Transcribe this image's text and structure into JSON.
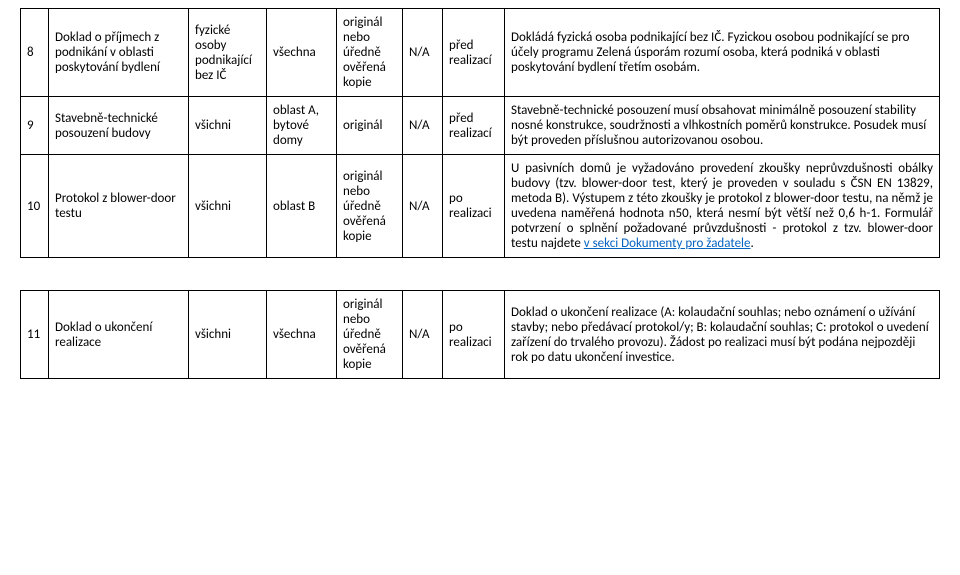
{
  "rows": [
    {
      "num": "8",
      "name": "Doklad o příjmech z podnikání v oblasti poskytování bydlení",
      "who": "fyzické osoby podnikající bez IČ",
      "area": "všechna",
      "form": "originál nebo úředně ověřená kopie",
      "na": "N/A",
      "when": "před realizací",
      "desc": "Dokládá fyzická osoba podnikající bez IČ. Fyzickou osobou podnikající se pro účely programu Zelená úsporám rozumí osoba, která podniká v oblasti poskytování bydlení třetím osobám."
    },
    {
      "num": "9",
      "name": "Stavebně-technické posouzení budovy",
      "who": "všichni",
      "area": "oblast A, bytové domy",
      "form": "originál",
      "na": "N/A",
      "when": "před realizací",
      "desc": "Stavebně-technické posouzení musí obsahovat minimálně posouzení stability nosné konstrukce, soudržnosti a vlhkostních poměrů konstrukce. Posudek musí být proveden příslušnou autorizovanou osobou."
    },
    {
      "num": "10",
      "name": "Protokol z blower-door testu",
      "who": "všichni",
      "area": "oblast B",
      "form": "originál nebo úředně ověřená kopie",
      "na": "N/A",
      "when": "po realizaci",
      "desc_pre": "U pasivních domů je vyžadováno provedení zkoušky neprůvzdušnosti obálky budovy (tzv. blower-door test, který je proveden v souladu s ČSN EN 13829, metoda B). Výstupem z této zkoušky je protokol z blower-door testu, na němž je uvedena naměřená hodnota n50, která nesmí být větší než 0,6 h-1. Formulář potvrzení o splnění požadované průvzdušnosti - protokol z tzv. blower-door testu najdete ",
      "desc_link": "v sekci Dokumenty pro žadatele",
      "desc_post": "."
    },
    {
      "num": "11",
      "name": "Doklad o ukončení realizace",
      "who": "všichni",
      "area": "všechna",
      "form": "originál nebo úředně ověřená kopie",
      "na": "N/A",
      "when": "po realizaci",
      "desc": "Doklad o ukončení realizace (A: kolaudační souhlas; nebo oznámení o užívání stavby; nebo předávací protokol/y; B: kolaudační souhlas; C: protokol o uvedení zařízení do trvalého provozu). Žádost po realizaci musí být podána nejpozději rok po datu ukončení investice."
    }
  ]
}
